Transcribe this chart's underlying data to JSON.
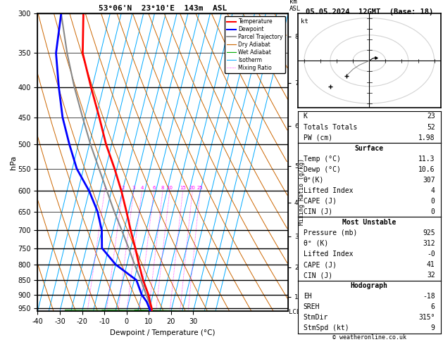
{
  "title_left": "53°06'N  23°10'E  143m  ASL",
  "title_right": "05.05.2024  12GMT  (Base: 18)",
  "xlabel": "Dewpoint / Temperature (°C)",
  "ylabel_left": "hPa",
  "background_color": "#ffffff",
  "pressure_levels": [
    300,
    350,
    400,
    450,
    500,
    550,
    600,
    650,
    700,
    750,
    800,
    850,
    900,
    950
  ],
  "temp_range": [
    -40,
    40
  ],
  "temp_ticks": [
    -40,
    -30,
    -20,
    -10,
    0,
    10,
    20,
    30
  ],
  "pres_min": 300,
  "pres_max": 960,
  "skew_factor": 28,
  "isotherm_color": "#00aaff",
  "isotherm_temps": [
    -40,
    -35,
    -30,
    -25,
    -20,
    -15,
    -10,
    -5,
    0,
    5,
    10,
    15,
    20,
    25,
    30,
    35,
    40
  ],
  "dry_adiabat_color": "#cc6600",
  "wet_adiabat_color": "#00aa00",
  "mixing_ratio_color": "#ff00ff",
  "mixing_ratio_values": [
    1,
    2,
    3,
    4,
    6,
    8,
    10,
    15,
    20,
    25
  ],
  "temperature_profile": {
    "pressure": [
      960,
      950,
      925,
      900,
      850,
      800,
      750,
      700,
      650,
      600,
      550,
      500,
      450,
      400,
      350,
      300
    ],
    "temp": [
      11.3,
      11.0,
      9.5,
      8.0,
      4.0,
      0.5,
      -3.0,
      -7.0,
      -11.0,
      -15.5,
      -21.0,
      -27.5,
      -33.5,
      -40.5,
      -48.0,
      -52.0
    ],
    "color": "#ff0000",
    "linewidth": 2.0
  },
  "dewpoint_profile": {
    "pressure": [
      960,
      950,
      925,
      900,
      850,
      800,
      750,
      700,
      650,
      600,
      550,
      500,
      450,
      400,
      350,
      300
    ],
    "temp": [
      10.6,
      10.0,
      8.0,
      5.0,
      1.0,
      -10.0,
      -18.0,
      -20.0,
      -24.0,
      -30.0,
      -38.0,
      -44.0,
      -50.0,
      -55.0,
      -60.0,
      -62.0
    ],
    "color": "#0000ff",
    "linewidth": 2.0
  },
  "parcel_profile": {
    "pressure": [
      960,
      950,
      925,
      900,
      850,
      800,
      750,
      700,
      650,
      600,
      550,
      500,
      450,
      400,
      350,
      300
    ],
    "temp": [
      11.3,
      10.8,
      9.0,
      7.0,
      3.0,
      -1.5,
      -6.0,
      -11.0,
      -16.5,
      -22.0,
      -28.0,
      -34.5,
      -41.0,
      -48.0,
      -55.0,
      -62.0
    ],
    "color": "#888888",
    "linewidth": 1.5
  },
  "km_ticks": [
    1,
    2,
    3,
    4,
    5,
    6,
    7,
    8
  ],
  "km_pressures": [
    907,
    808,
    716,
    628,
    544,
    465,
    393,
    328
  ],
  "stats": {
    "K": 23,
    "Totals_Totals": 52,
    "PW_cm": 1.98,
    "Surface": {
      "Temp_C": 11.3,
      "Dewp_C": 10.6,
      "theta_e_K": 307,
      "Lifted_Index": 4,
      "CAPE_J": 0,
      "CIN_J": 0
    },
    "Most_Unstable": {
      "Pressure_mb": 925,
      "theta_e_K": 312,
      "Lifted_Index": "-0",
      "CAPE_J": 41,
      "CIN_J": 32
    },
    "Hodograph": {
      "EH": -18,
      "SREH": 6,
      "StmDir": "315°",
      "StmSpd_kt": 9
    }
  },
  "copyright": "© weatheronline.co.uk"
}
